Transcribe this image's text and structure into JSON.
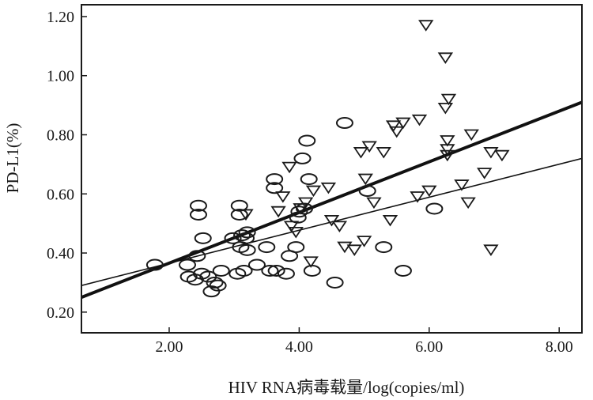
{
  "chart_data": {
    "type": "scatter",
    "title": "",
    "xlabel": "HIV RNA病毒载量/log(copies/ml)",
    "ylabel": "PD-L1(%)",
    "xlim": [
      0.65,
      8.35
    ],
    "ylim": [
      0.13,
      1.24
    ],
    "x_ticks": [
      2.0,
      4.0,
      6.0,
      8.0
    ],
    "x_tick_labels": [
      "2.00",
      "4.00",
      "6.00",
      "8.00"
    ],
    "y_ticks": [
      0.2,
      0.4,
      0.6,
      0.8,
      1.0,
      1.2
    ],
    "y_tick_labels": [
      "0.20",
      "0.40",
      "0.60",
      "0.80",
      "1.00",
      "1.20"
    ],
    "grid": false,
    "series": [
      {
        "marker": "circle",
        "points": [
          [
            1.78,
            0.36
          ],
          [
            2.28,
            0.36
          ],
          [
            2.3,
            0.32
          ],
          [
            2.4,
            0.31
          ],
          [
            2.43,
            0.39
          ],
          [
            2.45,
            0.56
          ],
          [
            2.45,
            0.53
          ],
          [
            2.5,
            0.33
          ],
          [
            2.52,
            0.45
          ],
          [
            2.6,
            0.32
          ],
          [
            2.65,
            0.27
          ],
          [
            2.7,
            0.3
          ],
          [
            2.75,
            0.29
          ],
          [
            2.8,
            0.34
          ],
          [
            2.98,
            0.45
          ],
          [
            3.05,
            0.33
          ],
          [
            3.08,
            0.56
          ],
          [
            3.08,
            0.53
          ],
          [
            3.1,
            0.42
          ],
          [
            3.12,
            0.46
          ],
          [
            3.15,
            0.34
          ],
          [
            3.18,
            0.45
          ],
          [
            3.2,
            0.47
          ],
          [
            3.2,
            0.41
          ],
          [
            3.35,
            0.36
          ],
          [
            3.5,
            0.42
          ],
          [
            3.55,
            0.34
          ],
          [
            3.62,
            0.65
          ],
          [
            3.62,
            0.62
          ],
          [
            3.65,
            0.34
          ],
          [
            3.8,
            0.33
          ],
          [
            3.85,
            0.39
          ],
          [
            3.95,
            0.42
          ],
          [
            3.98,
            0.52
          ],
          [
            4.0,
            0.54
          ],
          [
            4.05,
            0.72
          ],
          [
            4.08,
            0.55
          ],
          [
            4.12,
            0.78
          ],
          [
            4.15,
            0.65
          ],
          [
            4.2,
            0.34
          ],
          [
            4.55,
            0.3
          ],
          [
            4.7,
            0.84
          ],
          [
            5.05,
            0.61
          ],
          [
            5.3,
            0.42
          ],
          [
            5.6,
            0.34
          ],
          [
            6.08,
            0.55
          ]
        ]
      },
      {
        "marker": "triangle-down",
        "points": [
          [
            3.18,
            0.53
          ],
          [
            3.68,
            0.54
          ],
          [
            3.75,
            0.59
          ],
          [
            3.85,
            0.69
          ],
          [
            3.88,
            0.49
          ],
          [
            3.95,
            0.47
          ],
          [
            4.02,
            0.55
          ],
          [
            4.1,
            0.57
          ],
          [
            4.18,
            0.37
          ],
          [
            4.22,
            0.61
          ],
          [
            4.45,
            0.62
          ],
          [
            4.5,
            0.51
          ],
          [
            4.62,
            0.49
          ],
          [
            4.7,
            0.42
          ],
          [
            4.85,
            0.41
          ],
          [
            4.95,
            0.74
          ],
          [
            5.0,
            0.44
          ],
          [
            5.02,
            0.65
          ],
          [
            5.08,
            0.76
          ],
          [
            5.15,
            0.57
          ],
          [
            5.3,
            0.74
          ],
          [
            5.4,
            0.51
          ],
          [
            5.45,
            0.83
          ],
          [
            5.5,
            0.81
          ],
          [
            5.6,
            0.84
          ],
          [
            5.82,
            0.59
          ],
          [
            5.85,
            0.85
          ],
          [
            5.95,
            1.17
          ],
          [
            6.0,
            0.61
          ],
          [
            6.25,
            1.06
          ],
          [
            6.25,
            0.89
          ],
          [
            6.28,
            0.78
          ],
          [
            6.28,
            0.75
          ],
          [
            6.28,
            0.73
          ],
          [
            6.3,
            0.92
          ],
          [
            6.5,
            0.63
          ],
          [
            6.6,
            0.57
          ],
          [
            6.65,
            0.8
          ],
          [
            6.85,
            0.67
          ],
          [
            6.95,
            0.74
          ],
          [
            6.95,
            0.41
          ],
          [
            7.12,
            0.73
          ]
        ]
      }
    ],
    "fit_lines": [
      {
        "style": "thick",
        "x": [
          0.65,
          8.35
        ],
        "y": [
          0.25,
          0.91
        ]
      },
      {
        "style": "thin",
        "x": [
          0.65,
          8.35
        ],
        "y": [
          0.29,
          0.72
        ]
      }
    ]
  }
}
